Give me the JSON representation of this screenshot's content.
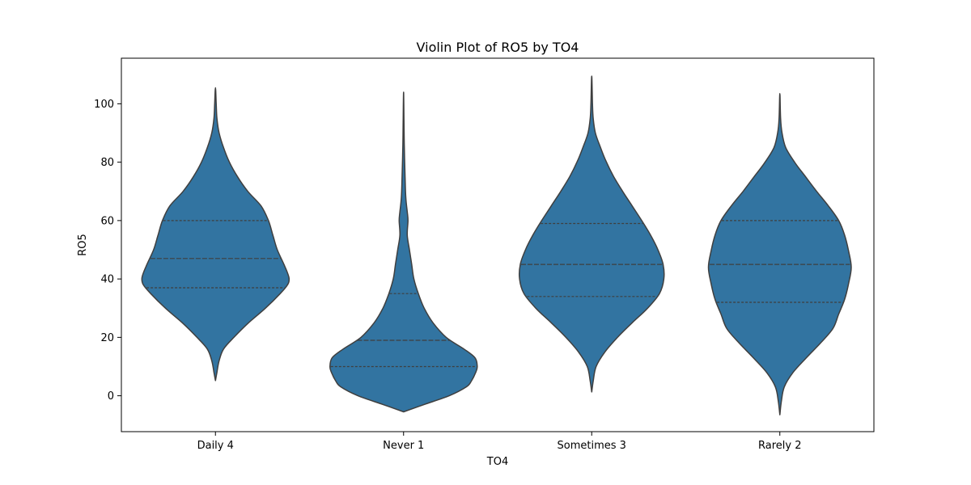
{
  "chart_data": {
    "type": "violin",
    "title": "Violin Plot of RO5 by TO4",
    "xlabel": "TO4",
    "ylabel": "RO5",
    "ylim": [
      -12,
      115
    ],
    "yticks": [
      0,
      20,
      40,
      60,
      80,
      100
    ],
    "grid": false,
    "inner": "quartile",
    "colors": {
      "fill": "#3274a1",
      "stroke": "#3f3f3f",
      "background": "#ffffff"
    },
    "categories": [
      "Daily 4",
      "Never 1",
      "Sometimes 3",
      "Rarely 2"
    ],
    "violins": [
      {
        "category": "Daily 4",
        "min": 5.2,
        "max": 105.5,
        "q1": 37,
        "median": 47,
        "q3": 60,
        "density": [
          [
            5.2,
            0
          ],
          [
            8,
            0.02
          ],
          [
            12,
            0.05
          ],
          [
            16,
            0.11
          ],
          [
            20,
            0.25
          ],
          [
            25,
            0.45
          ],
          [
            30,
            0.68
          ],
          [
            35,
            0.88
          ],
          [
            38,
            0.98
          ],
          [
            40,
            1.0
          ],
          [
            42,
            0.98
          ],
          [
            45,
            0.93
          ],
          [
            50,
            0.84
          ],
          [
            55,
            0.78
          ],
          [
            60,
            0.72
          ],
          [
            65,
            0.62
          ],
          [
            70,
            0.44
          ],
          [
            75,
            0.3
          ],
          [
            80,
            0.19
          ],
          [
            85,
            0.11
          ],
          [
            90,
            0.05
          ],
          [
            95,
            0.02
          ],
          [
            100,
            0.01
          ],
          [
            105.5,
            0
          ]
        ]
      },
      {
        "category": "Never 1",
        "min": -5.5,
        "max": 104,
        "q1": 10,
        "median": 19,
        "q3": 35,
        "density": [
          [
            -5.5,
            0
          ],
          [
            -3,
            0.28
          ],
          [
            0,
            0.62
          ],
          [
            3,
            0.85
          ],
          [
            5,
            0.92
          ],
          [
            8,
            0.98
          ],
          [
            10,
            1.0
          ],
          [
            13,
            0.97
          ],
          [
            16,
            0.82
          ],
          [
            20,
            0.58
          ],
          [
            25,
            0.4
          ],
          [
            30,
            0.28
          ],
          [
            35,
            0.2
          ],
          [
            40,
            0.14
          ],
          [
            45,
            0.11
          ],
          [
            50,
            0.08
          ],
          [
            55,
            0.05
          ],
          [
            60,
            0.06
          ],
          [
            63,
            0.05
          ],
          [
            68,
            0.03
          ],
          [
            75,
            0.02
          ],
          [
            85,
            0.01
          ],
          [
            95,
            0.005
          ],
          [
            104,
            0
          ]
        ]
      },
      {
        "category": "Sometimes 3",
        "min": 1.3,
        "max": 109.5,
        "q1": 34,
        "median": 45,
        "q3": 59,
        "density": [
          [
            1.3,
            0
          ],
          [
            5,
            0.02
          ],
          [
            10,
            0.06
          ],
          [
            15,
            0.18
          ],
          [
            20,
            0.35
          ],
          [
            25,
            0.55
          ],
          [
            30,
            0.76
          ],
          [
            35,
            0.92
          ],
          [
            40,
            0.98
          ],
          [
            45,
            0.97
          ],
          [
            50,
            0.9
          ],
          [
            55,
            0.8
          ],
          [
            60,
            0.68
          ],
          [
            65,
            0.55
          ],
          [
            70,
            0.42
          ],
          [
            75,
            0.3
          ],
          [
            80,
            0.2
          ],
          [
            85,
            0.12
          ],
          [
            90,
            0.05
          ],
          [
            95,
            0.02
          ],
          [
            100,
            0.01
          ],
          [
            109.5,
            0
          ]
        ]
      },
      {
        "category": "Rarely 2",
        "min": -6.5,
        "max": 103.5,
        "q1": 32,
        "median": 45,
        "q3": 60,
        "density": [
          [
            -6.5,
            0
          ],
          [
            -2,
            0.02
          ],
          [
            3,
            0.06
          ],
          [
            8,
            0.18
          ],
          [
            13,
            0.36
          ],
          [
            18,
            0.55
          ],
          [
            23,
            0.72
          ],
          [
            28,
            0.8
          ],
          [
            33,
            0.88
          ],
          [
            38,
            0.93
          ],
          [
            44,
            0.97
          ],
          [
            50,
            0.93
          ],
          [
            55,
            0.88
          ],
          [
            60,
            0.8
          ],
          [
            65,
            0.66
          ],
          [
            70,
            0.5
          ],
          [
            75,
            0.35
          ],
          [
            80,
            0.2
          ],
          [
            85,
            0.08
          ],
          [
            90,
            0.03
          ],
          [
            95,
            0.01
          ],
          [
            103.5,
            0
          ]
        ]
      }
    ]
  }
}
